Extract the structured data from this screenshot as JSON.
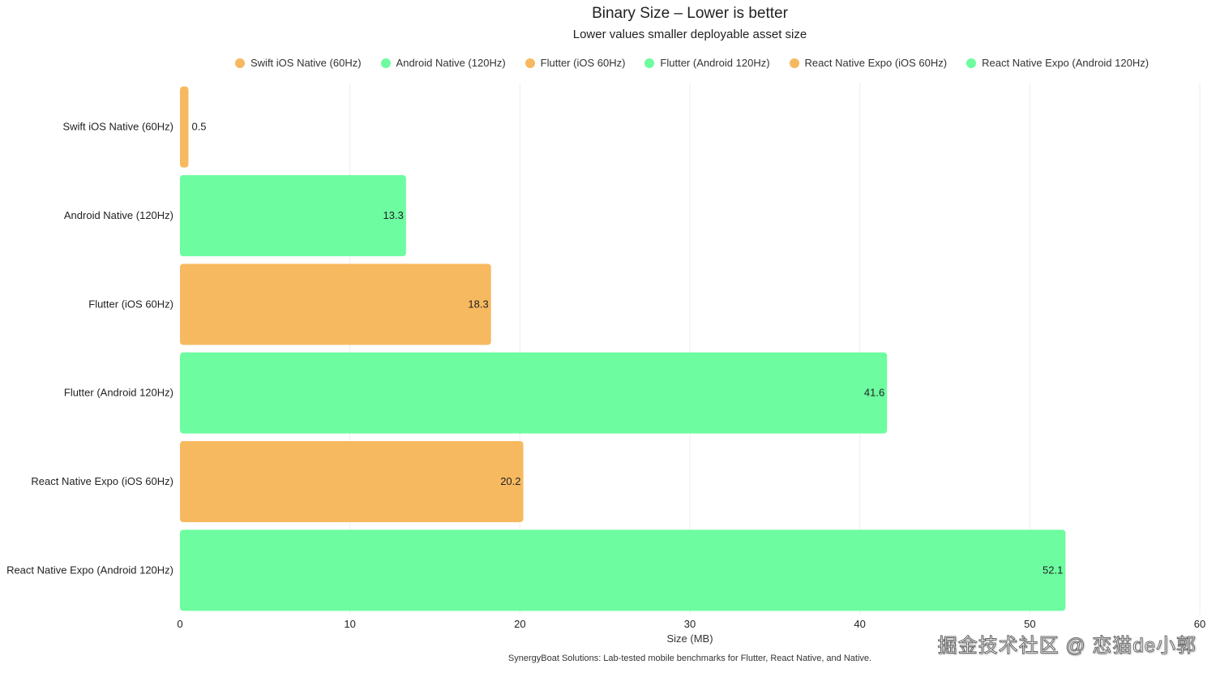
{
  "chart_data": {
    "type": "bar",
    "orientation": "horizontal",
    "title": "Binary Size – Lower is better",
    "subtitle": "Lower values smaller deployable asset size",
    "xlabel": "Size (MB)",
    "ylabel": "",
    "xlim": [
      0,
      60
    ],
    "xticks": [
      "0",
      "10",
      "20",
      "30",
      "40",
      "50",
      "60"
    ],
    "grid": true,
    "legend_position": "top",
    "categories": [
      "Swift iOS Native (60Hz)",
      "Android Native (120Hz)",
      "Flutter (iOS 60Hz)",
      "Flutter (Android 120Hz)",
      "React Native Expo (iOS 60Hz)",
      "React Native Expo (Android 120Hz)"
    ],
    "values": [
      0.5,
      13.3,
      18.3,
      41.6,
      20.2,
      52.1
    ],
    "value_labels": [
      "0.5",
      "13.3",
      "18.3",
      "41.6",
      "20.2",
      "52.1"
    ],
    "bar_colors": [
      "#f7b960",
      "#6dfca0",
      "#f7b960",
      "#6dfca0",
      "#f7b960",
      "#6dfca0"
    ],
    "legend": [
      {
        "name": "Swift iOS Native (60Hz)",
        "color": "#f7b960"
      },
      {
        "name": "Android Native (120Hz)",
        "color": "#6dfca0"
      },
      {
        "name": "Flutter (iOS 60Hz)",
        "color": "#f7b960"
      },
      {
        "name": "Flutter (Android 120Hz)",
        "color": "#6dfca0"
      },
      {
        "name": "React Native Expo (iOS 60Hz)",
        "color": "#f7b960"
      },
      {
        "name": "React Native Expo (Android 120Hz)",
        "color": "#6dfca0"
      }
    ]
  },
  "footnote": "SynergyBoat Solutions: Lab-tested mobile benchmarks for Flutter, React Native, and Native.",
  "watermark": "掘金技术社区 @ 恋猫de小郭"
}
